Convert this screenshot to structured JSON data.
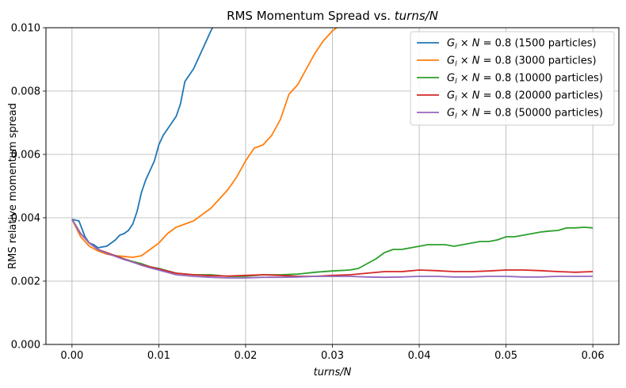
{
  "chart_data": {
    "type": "line",
    "title": "RMS Momentum Spread vs. turns/N",
    "xlabel": "turns/N",
    "ylabel": "RMS relative momentum spread",
    "xlim": [
      -0.003,
      0.063
    ],
    "ylim": [
      0.0,
      0.01
    ],
    "xticks": [
      "0.00",
      "0.01",
      "0.02",
      "0.03",
      "0.04",
      "0.05",
      "0.06"
    ],
    "yticks": [
      "0.000",
      "0.002",
      "0.004",
      "0.006",
      "0.008",
      "0.010"
    ],
    "grid": true,
    "legend_position": "top-right",
    "series": [
      {
        "name": "G_l × N = 0.8 (1500 particles)",
        "color": "#1f77b4",
        "x": [
          0,
          0.0008,
          0.0015,
          0.002,
          0.0025,
          0.003,
          0.0035,
          0.004,
          0.0045,
          0.005,
          0.0055,
          0.006,
          0.0065,
          0.007,
          0.0075,
          0.008,
          0.0085,
          0.009,
          0.0095,
          0.01,
          0.0105,
          0.011,
          0.0115,
          0.012,
          0.0125,
          0.013,
          0.0135,
          0.014,
          0.0145,
          0.015,
          0.0155,
          0.016,
          0.0162
        ],
        "y": [
          0.00395,
          0.0039,
          0.0034,
          0.0032,
          0.00315,
          0.00305,
          0.00308,
          0.0031,
          0.0032,
          0.0033,
          0.00345,
          0.0035,
          0.0036,
          0.0038,
          0.0042,
          0.0048,
          0.0052,
          0.0055,
          0.0058,
          0.0063,
          0.0066,
          0.0068,
          0.007,
          0.0072,
          0.0076,
          0.0083,
          0.0085,
          0.0087,
          0.009,
          0.0093,
          0.0096,
          0.0099,
          0.01
        ]
      },
      {
        "name": "G_l × N = 0.8 (3000 particles)",
        "color": "#ff7f0e",
        "x": [
          0,
          0.001,
          0.002,
          0.003,
          0.004,
          0.005,
          0.006,
          0.007,
          0.008,
          0.009,
          0.01,
          0.011,
          0.012,
          0.013,
          0.014,
          0.015,
          0.016,
          0.017,
          0.018,
          0.019,
          0.02,
          0.021,
          0.022,
          0.023,
          0.024,
          0.025,
          0.026,
          0.027,
          0.028,
          0.029,
          0.03,
          0.0305
        ],
        "y": [
          0.00395,
          0.0034,
          0.0031,
          0.00295,
          0.00285,
          0.0028,
          0.00278,
          0.00275,
          0.0028,
          0.003,
          0.0032,
          0.0035,
          0.0037,
          0.0038,
          0.0039,
          0.0041,
          0.0043,
          0.0046,
          0.0049,
          0.0053,
          0.0058,
          0.0062,
          0.0063,
          0.0066,
          0.0071,
          0.0079,
          0.0082,
          0.0087,
          0.0092,
          0.0096,
          0.0099,
          0.01
        ]
      },
      {
        "name": "G_l × N = 0.8 (10000 particles)",
        "color": "#2ca02c",
        "x": [
          0,
          0.001,
          0.002,
          0.003,
          0.004,
          0.005,
          0.006,
          0.007,
          0.008,
          0.009,
          0.01,
          0.012,
          0.014,
          0.016,
          0.018,
          0.02,
          0.022,
          0.024,
          0.026,
          0.028,
          0.03,
          0.032,
          0.033,
          0.034,
          0.035,
          0.036,
          0.037,
          0.038,
          0.039,
          0.04,
          0.041,
          0.042,
          0.043,
          0.044,
          0.045,
          0.046,
          0.047,
          0.048,
          0.049,
          0.05,
          0.051,
          0.052,
          0.053,
          0.054,
          0.055,
          0.056,
          0.057,
          0.058,
          0.059,
          0.06
        ],
        "y": [
          0.00395,
          0.0035,
          0.0032,
          0.003,
          0.00288,
          0.0028,
          0.0027,
          0.00262,
          0.00255,
          0.00245,
          0.0024,
          0.00225,
          0.0022,
          0.0022,
          0.00215,
          0.00215,
          0.0022,
          0.0022,
          0.00222,
          0.00228,
          0.00232,
          0.00235,
          0.0024,
          0.00255,
          0.0027,
          0.0029,
          0.003,
          0.003,
          0.00305,
          0.0031,
          0.00315,
          0.00315,
          0.00315,
          0.0031,
          0.00315,
          0.0032,
          0.00325,
          0.00325,
          0.0033,
          0.0034,
          0.0034,
          0.00345,
          0.0035,
          0.00355,
          0.00358,
          0.0036,
          0.00368,
          0.00368,
          0.0037,
          0.00368
        ]
      },
      {
        "name": "G_l × N = 0.8 (20000 particles)",
        "color": "#d62728",
        "x": [
          0,
          0.001,
          0.002,
          0.003,
          0.004,
          0.005,
          0.006,
          0.007,
          0.008,
          0.009,
          0.01,
          0.012,
          0.014,
          0.016,
          0.018,
          0.02,
          0.022,
          0.024,
          0.026,
          0.028,
          0.03,
          0.032,
          0.034,
          0.036,
          0.038,
          0.04,
          0.042,
          0.044,
          0.046,
          0.048,
          0.05,
          0.052,
          0.054,
          0.056,
          0.058,
          0.06
        ],
        "y": [
          0.00395,
          0.0035,
          0.0032,
          0.003,
          0.0029,
          0.0028,
          0.0027,
          0.0026,
          0.00252,
          0.00245,
          0.00238,
          0.00225,
          0.0022,
          0.00217,
          0.00216,
          0.00218,
          0.0022,
          0.00218,
          0.00215,
          0.00215,
          0.00218,
          0.0022,
          0.00225,
          0.0023,
          0.0023,
          0.00235,
          0.00233,
          0.0023,
          0.0023,
          0.00232,
          0.00235,
          0.00235,
          0.00233,
          0.0023,
          0.00228,
          0.0023
        ]
      },
      {
        "name": "G_l × N = 0.8 (50000 particles)",
        "color": "#9467bd",
        "x": [
          0,
          0.001,
          0.002,
          0.003,
          0.004,
          0.005,
          0.006,
          0.007,
          0.008,
          0.009,
          0.01,
          0.012,
          0.014,
          0.016,
          0.018,
          0.02,
          0.022,
          0.024,
          0.026,
          0.028,
          0.03,
          0.032,
          0.034,
          0.036,
          0.038,
          0.04,
          0.042,
          0.044,
          0.046,
          0.048,
          0.05,
          0.052,
          0.054,
          0.056,
          0.058,
          0.06
        ],
        "y": [
          0.00395,
          0.0035,
          0.0032,
          0.003,
          0.00288,
          0.00278,
          0.00268,
          0.0026,
          0.0025,
          0.00242,
          0.00235,
          0.0022,
          0.00215,
          0.00212,
          0.0021,
          0.0021,
          0.00212,
          0.00212,
          0.00213,
          0.00215,
          0.00215,
          0.00215,
          0.00213,
          0.00212,
          0.00213,
          0.00215,
          0.00215,
          0.00213,
          0.00213,
          0.00215,
          0.00215,
          0.00213,
          0.00213,
          0.00215,
          0.00215,
          0.00215
        ]
      }
    ]
  }
}
